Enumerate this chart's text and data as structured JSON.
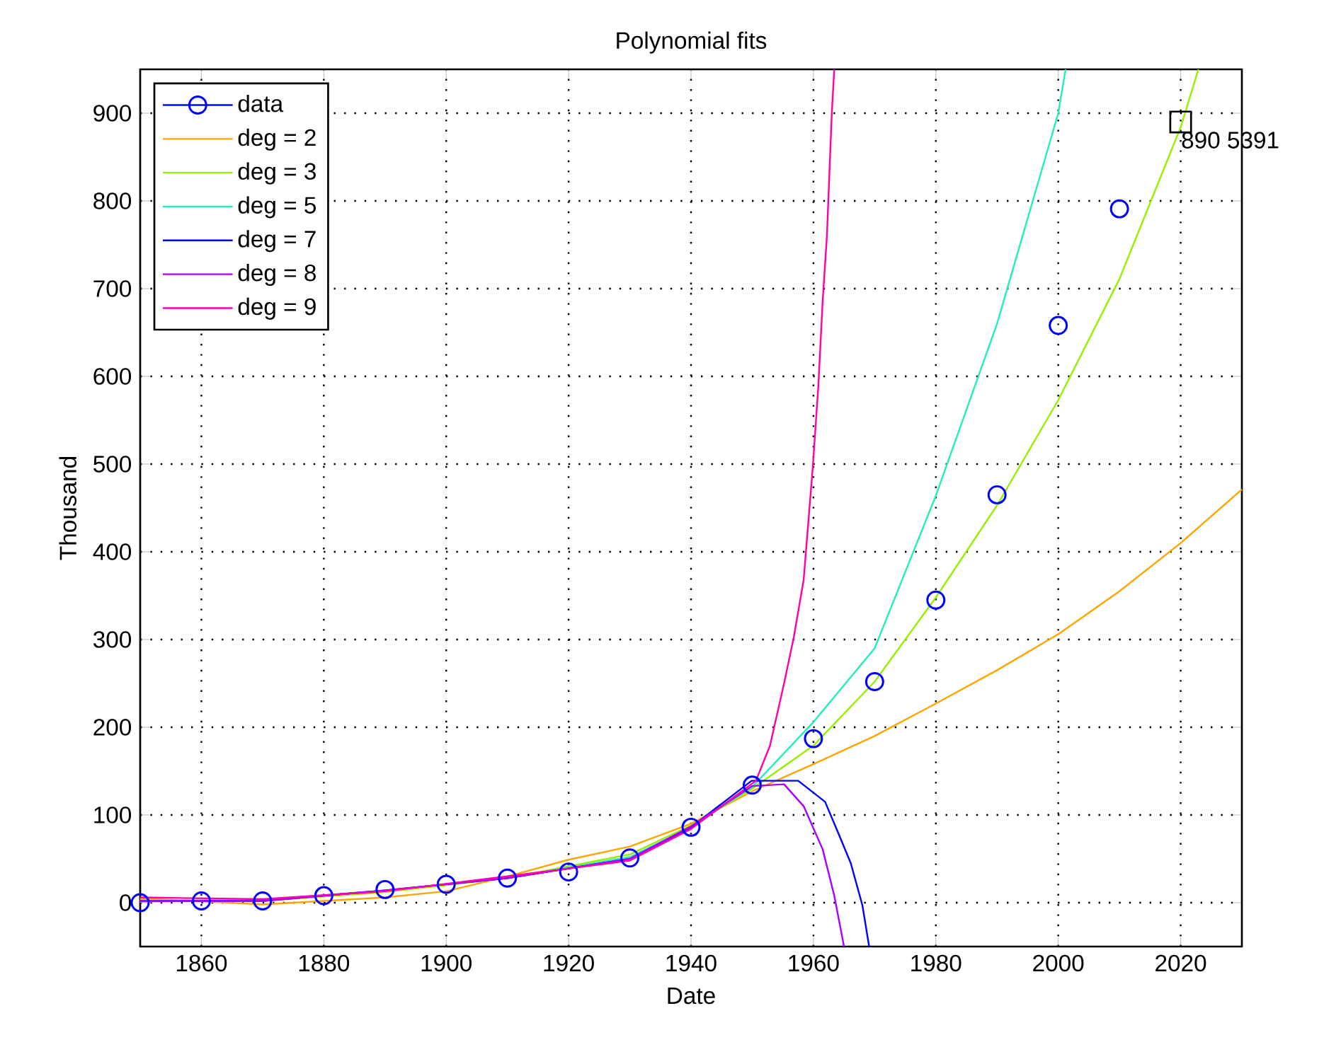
{
  "chart_data": {
    "type": "line",
    "title": "Polynomial fits",
    "xlabel": "Date",
    "ylabel": "Thousand",
    "xlim": [
      1850,
      2030
    ],
    "ylim": [
      -50,
      950
    ],
    "xticks": [
      1860,
      1880,
      1900,
      1920,
      1940,
      1960,
      1980,
      2000,
      2020
    ],
    "yticks": [
      0,
      100,
      200,
      300,
      400,
      500,
      600,
      700,
      800,
      900
    ],
    "grid": true,
    "legend": "top left",
    "annotations": [
      {
        "text": "890 5391",
        "x": 2020,
        "y": 890
      }
    ],
    "series": [
      {
        "name": "data",
        "type": "scatter",
        "marker": "circle",
        "color": "#0000ff",
        "x": [
          1850,
          1860,
          1870,
          1880,
          1890,
          1900,
          1910,
          1920,
          1930,
          1940,
          1950,
          1960,
          1970,
          1980,
          1990,
          2000,
          2010
        ],
        "values": [
          0,
          2,
          2,
          8,
          15,
          21,
          28,
          35,
          51,
          86,
          134,
          187,
          252,
          345,
          465,
          658,
          791
        ]
      },
      {
        "name": "deg = 2",
        "color": "#ffa500",
        "x": [
          1850,
          1870,
          1890,
          1900,
          1910,
          1920,
          1930,
          1940,
          1950,
          1960,
          1970,
          1980,
          1990,
          2000,
          2010,
          2020,
          2030
        ],
        "values": [
          5,
          -2,
          6,
          13,
          30,
          49,
          64,
          90,
          127,
          158,
          190,
          227,
          265,
          306,
          355,
          410,
          471
        ]
      },
      {
        "name": "deg = 3",
        "color": "#99ee00",
        "x": [
          1850,
          1870,
          1890,
          1910,
          1930,
          1940,
          1950,
          1960,
          1970,
          1980,
          1990,
          2000,
          2010,
          2020,
          2022.9
        ],
        "values": [
          3,
          2,
          12,
          28,
          55,
          88,
          130,
          179,
          252,
          348,
          453,
          573,
          711,
          884,
          950
        ]
      },
      {
        "name": "deg = 5",
        "color": "#22eebb",
        "x": [
          1850,
          1870,
          1890,
          1910,
          1930,
          1940,
          1950,
          1960,
          1970,
          1980,
          1990,
          2000,
          2001.2
        ],
        "values": [
          1,
          3,
          14,
          28,
          52,
          86,
          132,
          206,
          290,
          464,
          660,
          900,
          950
        ]
      },
      {
        "name": "deg = 7",
        "color": "#0000ff",
        "x": [
          1850,
          1870,
          1890,
          1910,
          1930,
          1940,
          1949.9,
          1957.5,
          1961.9,
          1964.2,
          1966.1,
          1968,
          1969.1
        ],
        "values": [
          2,
          2,
          14,
          28,
          50,
          86,
          139,
          139,
          115,
          77,
          45,
          -3,
          -50
        ]
      },
      {
        "name": "deg = 8",
        "color": "#aa00ff",
        "x": [
          1850,
          1870,
          1890,
          1910,
          1930,
          1940,
          1950,
          1955.2,
          1958.4,
          1961.5,
          1963.4,
          1965
        ],
        "values": [
          2,
          2,
          14,
          28,
          50,
          87,
          133,
          135,
          110,
          61,
          8,
          -50
        ]
      },
      {
        "name": "deg = 9",
        "color": "#ff00aa",
        "x": [
          1850,
          1870,
          1890,
          1910,
          1930,
          1940,
          1950.6,
          1952.9,
          1955.2,
          1956.8,
          1958.4,
          1959.9,
          1960.8,
          1961.5,
          1962.2,
          1963,
          1963.4
        ],
        "values": [
          6,
          4,
          13,
          30,
          48,
          84,
          139,
          179,
          250,
          303,
          368,
          497,
          589,
          685,
          760,
          900,
          950
        ]
      }
    ]
  }
}
